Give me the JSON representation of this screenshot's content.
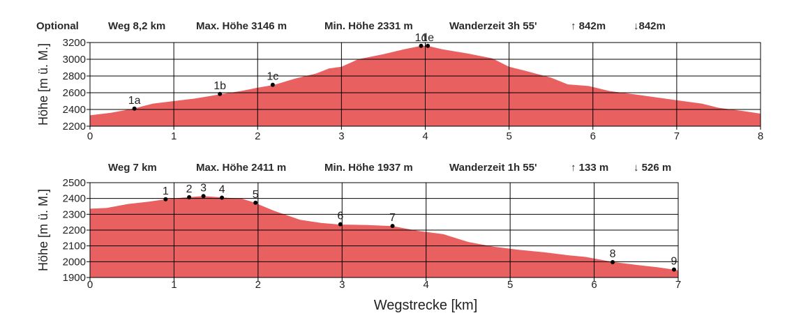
{
  "profile1": {
    "label": "Optional",
    "distance": "Weg 8,2 km",
    "max_height": "Max. Höhe 3146 m",
    "min_height": "Min. Höhe 2331 m",
    "time": "Wanderzeit 3h 55'",
    "ascent": "↑ 842m",
    "descent": "↓842m"
  },
  "profile2": {
    "label": "",
    "distance": "Weg 7 km",
    "max_height": "Max. Höhe 2411 m",
    "min_height": "Min. Höhe 1937 m",
    "time": "Wanderzeit 1h 55'",
    "ascent": "↑ 133 m",
    "descent": "↓ 526 m"
  },
  "x_axis_label": "Wegstrecke [km]",
  "colors": {
    "fill": "#e86060",
    "grid": "#000000",
    "point": "#000000"
  },
  "chart_data": [
    {
      "type": "area",
      "ylabel": "Höhe [m ü. M.]",
      "xlabel": "",
      "xlim": [
        0,
        8
      ],
      "ylim": [
        2200,
        3200
      ],
      "x_ticks": [
        0,
        1,
        2,
        3,
        4,
        5,
        6,
        7,
        8
      ],
      "y_ticks": [
        2200,
        2400,
        2600,
        2800,
        3000,
        3200
      ],
      "grid": true,
      "profile": [
        [
          0,
          2330
        ],
        [
          0.25,
          2360
        ],
        [
          0.52,
          2410
        ],
        [
          0.75,
          2470
        ],
        [
          1.0,
          2500
        ],
        [
          1.25,
          2530
        ],
        [
          1.55,
          2580
        ],
        [
          1.8,
          2620
        ],
        [
          2.0,
          2660
        ],
        [
          2.2,
          2695
        ],
        [
          2.45,
          2770
        ],
        [
          2.7,
          2830
        ],
        [
          2.85,
          2890
        ],
        [
          3.0,
          2910
        ],
        [
          3.2,
          3000
        ],
        [
          3.5,
          3060
        ],
        [
          3.75,
          3120
        ],
        [
          3.95,
          3160
        ],
        [
          4.03,
          3160
        ],
        [
          4.2,
          3120
        ],
        [
          4.5,
          3070
        ],
        [
          4.8,
          3010
        ],
        [
          5.0,
          2910
        ],
        [
          5.2,
          2860
        ],
        [
          5.5,
          2780
        ],
        [
          5.7,
          2700
        ],
        [
          5.95,
          2680
        ],
        [
          6.2,
          2620
        ],
        [
          6.5,
          2580
        ],
        [
          7.0,
          2510
        ],
        [
          7.3,
          2470
        ],
        [
          7.5,
          2420
        ],
        [
          7.8,
          2380
        ],
        [
          8.0,
          2350
        ]
      ],
      "points": [
        {
          "label": "1a",
          "x": 0.53,
          "y": 2410
        },
        {
          "label": "1b",
          "x": 1.55,
          "y": 2585
        },
        {
          "label": "1c",
          "x": 2.18,
          "y": 2695
        },
        {
          "label": "1d",
          "x": 3.95,
          "y": 3160
        },
        {
          "label": "1e",
          "x": 4.03,
          "y": 3160
        }
      ]
    },
    {
      "type": "area",
      "ylabel": "Höhe [m ü. M.]",
      "xlabel": "Wegstrecke [km]",
      "xlim": [
        0,
        7
      ],
      "ylim": [
        1900,
        2500
      ],
      "x_ticks": [
        0,
        1,
        2,
        3,
        4,
        5,
        6,
        7
      ],
      "y_ticks": [
        1900,
        2000,
        2100,
        2200,
        2300,
        2400,
        2500
      ],
      "grid": true,
      "profile": [
        [
          0,
          2335
        ],
        [
          0.2,
          2340
        ],
        [
          0.45,
          2365
        ],
        [
          0.7,
          2380
        ],
        [
          0.9,
          2395
        ],
        [
          1.1,
          2405
        ],
        [
          1.35,
          2415
        ],
        [
          1.6,
          2405
        ],
        [
          1.8,
          2400
        ],
        [
          1.95,
          2375
        ],
        [
          2.2,
          2320
        ],
        [
          2.5,
          2265
        ],
        [
          2.75,
          2245
        ],
        [
          2.98,
          2235
        ],
        [
          3.3,
          2232
        ],
        [
          3.6,
          2225
        ],
        [
          3.9,
          2195
        ],
        [
          4.2,
          2175
        ],
        [
          4.5,
          2125
        ],
        [
          4.8,
          2095
        ],
        [
          5.1,
          2075
        ],
        [
          5.4,
          2060
        ],
        [
          5.7,
          2040
        ],
        [
          5.9,
          2030
        ],
        [
          6.2,
          2000
        ],
        [
          6.5,
          1980
        ],
        [
          6.75,
          1965
        ],
        [
          6.95,
          1950
        ],
        [
          7.0,
          1945
        ]
      ],
      "points": [
        {
          "label": "1",
          "x": 0.9,
          "y": 2395
        },
        {
          "label": "2",
          "x": 1.18,
          "y": 2408
        },
        {
          "label": "3",
          "x": 1.35,
          "y": 2415
        },
        {
          "label": "4",
          "x": 1.57,
          "y": 2405
        },
        {
          "label": "5",
          "x": 1.97,
          "y": 2373
        },
        {
          "label": "6",
          "x": 2.98,
          "y": 2237
        },
        {
          "label": "7",
          "x": 3.6,
          "y": 2226
        },
        {
          "label": "8",
          "x": 6.22,
          "y": 1997
        },
        {
          "label": "9",
          "x": 6.95,
          "y": 1950
        }
      ]
    }
  ]
}
